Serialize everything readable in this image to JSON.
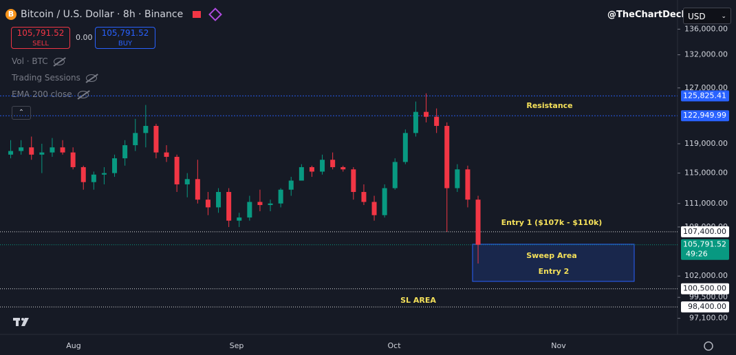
{
  "header": {
    "title": "Bitcoin / U.S. Dollar · 8h · Binance",
    "sell_price": "105,791.52",
    "sell": "SELL",
    "spread": "0.00",
    "buy_price": "105,791.52",
    "buy": "BUY",
    "indicators": [
      "Vol · BTC",
      "Trading Sessions",
      "EMA 200 close"
    ],
    "watermark": "@TheChartDeck",
    "currency": "USD"
  },
  "chart_data": {
    "type": "candlestick",
    "categories": [
      null,
      null,
      null,
      null,
      null,
      null,
      null,
      null,
      null,
      null,
      null,
      null,
      null,
      null,
      null,
      null,
      null,
      null,
      null,
      null,
      null,
      null,
      null,
      null,
      null,
      null,
      null,
      null,
      null,
      null,
      null,
      null,
      null,
      null,
      null,
      null,
      null,
      null,
      null,
      null,
      null,
      null,
      null,
      null,
      null,
      null
    ],
    "open": [
      117500,
      118000,
      118500,
      117500,
      117800,
      118500,
      117800,
      115800,
      113800,
      114800,
      115000,
      117000,
      118800,
      120500,
      121500,
      117800,
      117200,
      113500,
      114200,
      111500,
      110500,
      112500,
      108800,
      109200,
      111200,
      110800,
      111000,
      112800,
      114000,
      115800,
      115200,
      116800,
      115800,
      115500,
      112500,
      111200,
      109500,
      113000,
      116500,
      120500,
      123500,
      122800,
      121500,
      113000,
      115500,
      111500
    ],
    "high": [
      119500,
      119500,
      120000,
      119000,
      119800,
      119500,
      118500,
      116000,
      115200,
      115800,
      117500,
      119500,
      122500,
      124500,
      121800,
      118800,
      117500,
      115000,
      116800,
      112500,
      113000,
      113000,
      109800,
      112000,
      112800,
      111500,
      113000,
      114500,
      116200,
      116000,
      117500,
      117800,
      116000,
      115800,
      113500,
      112000,
      113500,
      117000,
      121000,
      125000,
      126200,
      124000,
      122000,
      116200,
      116000,
      112000
    ],
    "low": [
      117000,
      117500,
      116800,
      115000,
      117200,
      117500,
      115500,
      112800,
      112800,
      113500,
      114500,
      116000,
      118000,
      118500,
      117000,
      116500,
      112500,
      111800,
      111000,
      109500,
      109800,
      108000,
      108000,
      108800,
      110000,
      110000,
      110500,
      112000,
      114000,
      114500,
      114800,
      115500,
      115200,
      111500,
      110800,
      108800,
      109200,
      112800,
      116200,
      120000,
      122000,
      120500,
      107400,
      112500,
      110500,
      103500
    ],
    "close": [
      118000,
      118500,
      117500,
      117800,
      118500,
      117800,
      115800,
      113800,
      114800,
      115000,
      117000,
      118800,
      120500,
      121500,
      117800,
      117200,
      113500,
      114200,
      111500,
      110500,
      112500,
      108800,
      109200,
      111200,
      110800,
      111000,
      112800,
      114000,
      115800,
      115200,
      116800,
      115800,
      115500,
      112500,
      111200,
      109500,
      113000,
      116500,
      120500,
      123500,
      122800,
      121500,
      113000,
      115500,
      111500,
      105791.52
    ],
    "up_color": "#089981",
    "down_color": "#f23645",
    "log_scale": true,
    "grid": false,
    "ylim": [
      95300,
      140700
    ],
    "yticks": [
      {
        "value": 136000,
        "label": "136,000.00"
      },
      {
        "value": 132000,
        "label": "132,000.00"
      },
      {
        "value": 127000,
        "label": "127,000.00"
      },
      {
        "value": 119000,
        "label": "119,000.00"
      },
      {
        "value": 115000,
        "label": "115,000.00"
      },
      {
        "value": 111000,
        "label": "111,000.00"
      },
      {
        "value": 108000,
        "label": "108,000.00"
      },
      {
        "value": 102000,
        "label": "102,000.00"
      },
      {
        "value": 99500,
        "label": "99,500.00"
      },
      {
        "value": 97100,
        "label": "97,100.00"
      }
    ],
    "time_axis": [
      "Aug",
      "Sep",
      "Oct",
      "Nov"
    ],
    "levels": [
      {
        "value": 125825.41,
        "label": "125,825.41",
        "color": "#2962ff"
      },
      {
        "value": 122949.99,
        "label": "122,949.99",
        "color": "#2962ff"
      },
      {
        "value": 107400,
        "label": "107,400.00",
        "color": "#ffffff"
      },
      {
        "value": 100500,
        "label": "100,500.00",
        "color": "#ffffff"
      },
      {
        "value": 98400,
        "label": "98,400.00",
        "color": "#ffffff"
      }
    ],
    "last_price": {
      "value": 105791.52,
      "label": "105,791.52",
      "countdown": "49:26",
      "color": "#089981"
    },
    "annotations": [
      "Resistance",
      "Entry 1 ($107k - $110k)",
      "Sweep Area",
      "Entry 2",
      "SL AREA"
    ],
    "annotation_color": "#f5e15a"
  }
}
